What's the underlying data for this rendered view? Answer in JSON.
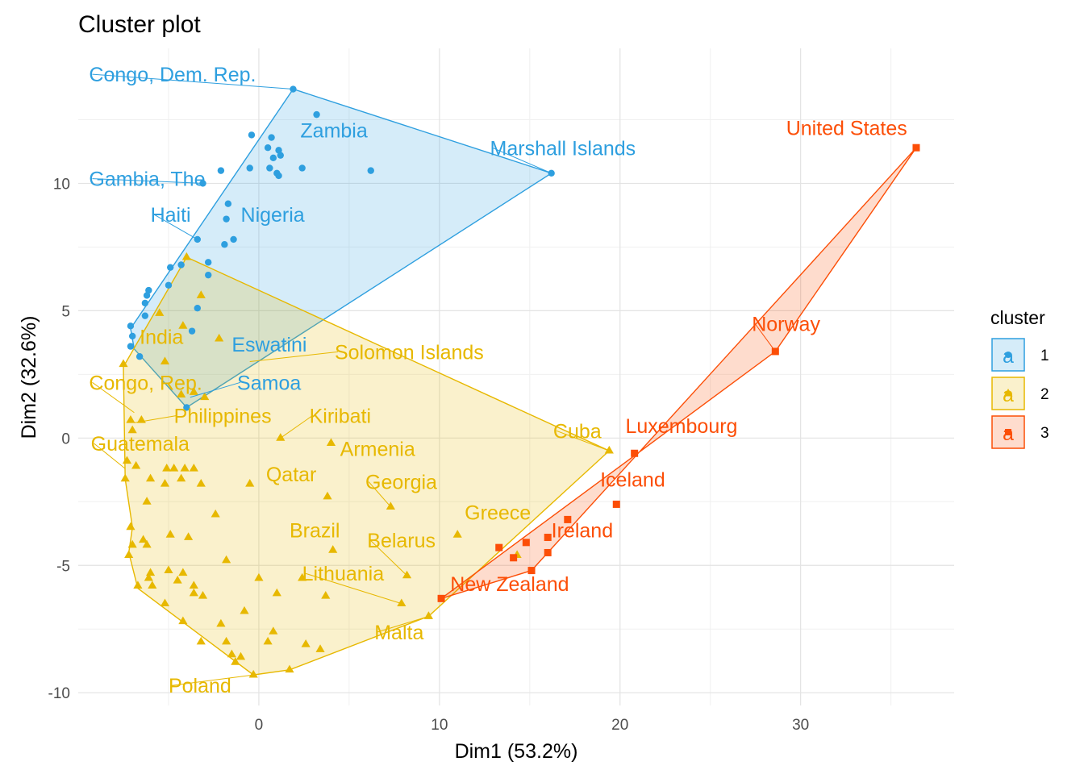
{
  "chart_data": {
    "type": "scatter",
    "title": "Cluster plot",
    "xlabel": "Dim1 (53.2%)",
    "ylabel": "Dim2 (32.6%)",
    "xlim": [
      -10,
      38.5
    ],
    "ylim": [
      -10.5,
      15.3
    ],
    "x_ticks": [
      0,
      10,
      20,
      30
    ],
    "y_ticks": [
      -10,
      -5,
      0,
      5,
      10
    ],
    "grid": true,
    "legend_title": "cluster",
    "legend_position": "right",
    "legend_glyph": "a",
    "series": [
      {
        "name": "1",
        "color": "#2E9FDF",
        "marker": "circle",
        "hull": [
          [
            -4.0,
            1.2
          ],
          [
            -6.9,
            3.5
          ],
          [
            -7.1,
            4.3
          ],
          [
            1.9,
            13.7
          ],
          [
            16.2,
            10.4
          ]
        ],
        "points": [
          [
            1.9,
            13.7
          ],
          [
            3.2,
            12.7
          ],
          [
            -0.4,
            11.9
          ],
          [
            0.7,
            11.8
          ],
          [
            0.5,
            11.4
          ],
          [
            1.1,
            11.3
          ],
          [
            1.2,
            11.1
          ],
          [
            0.8,
            11.0
          ],
          [
            -2.1,
            10.5
          ],
          [
            -0.5,
            10.6
          ],
          [
            0.6,
            10.6
          ],
          [
            2.4,
            10.6
          ],
          [
            6.2,
            10.5
          ],
          [
            1.0,
            10.4
          ],
          [
            1.1,
            10.3
          ],
          [
            16.2,
            10.4
          ],
          [
            -3.1,
            10.0
          ],
          [
            -1.7,
            9.2
          ],
          [
            -1.8,
            8.6
          ],
          [
            -3.4,
            7.8
          ],
          [
            -1.4,
            7.8
          ],
          [
            -1.9,
            7.6
          ],
          [
            -2.8,
            6.9
          ],
          [
            -4.3,
            6.8
          ],
          [
            -4.9,
            6.7
          ],
          [
            -2.8,
            6.4
          ],
          [
            -5.0,
            6.0
          ],
          [
            -6.1,
            5.8
          ],
          [
            -6.2,
            5.6
          ],
          [
            -6.3,
            5.3
          ],
          [
            -3.4,
            5.1
          ],
          [
            -6.3,
            4.8
          ],
          [
            -7.1,
            4.4
          ],
          [
            -3.7,
            4.2
          ],
          [
            -7.0,
            4.0
          ],
          [
            -7.1,
            3.6
          ],
          [
            -6.6,
            3.2
          ],
          [
            -4.0,
            1.2
          ]
        ]
      },
      {
        "name": "2",
        "color": "#E7B800",
        "marker": "triangle",
        "hull": [
          [
            -7.4,
            -1.6
          ],
          [
            -7.5,
            2.8
          ],
          [
            -4.0,
            7.1
          ],
          [
            19.4,
            -0.5
          ],
          [
            9.4,
            -7.0
          ],
          [
            1.7,
            -9.1
          ],
          [
            -0.3,
            -9.3
          ],
          [
            -6.7,
            -5.9
          ],
          [
            -7.2,
            -4.5
          ],
          [
            -7.0,
            -3.5
          ]
        ],
        "points": [
          [
            -4.0,
            7.1
          ],
          [
            -3.2,
            5.6
          ],
          [
            -5.5,
            4.9
          ],
          [
            -4.2,
            4.4
          ],
          [
            -2.2,
            3.9
          ],
          [
            -5.2,
            3.0
          ],
          [
            -7.5,
            2.9
          ],
          [
            -4.3,
            1.7
          ],
          [
            -3.6,
            1.8
          ],
          [
            -3.0,
            1.6
          ],
          [
            -7.1,
            0.7
          ],
          [
            -6.5,
            0.7
          ],
          [
            -7.0,
            0.3
          ],
          [
            1.2,
            0.0
          ],
          [
            4.0,
            -0.2
          ],
          [
            19.4,
            -0.5
          ],
          [
            -7.3,
            -0.9
          ],
          [
            -6.8,
            -1.1
          ],
          [
            -5.1,
            -1.2
          ],
          [
            -4.7,
            -1.2
          ],
          [
            -4.1,
            -1.2
          ],
          [
            -3.6,
            -1.2
          ],
          [
            -7.4,
            -1.6
          ],
          [
            -6.0,
            -1.6
          ],
          [
            -4.3,
            -1.6
          ],
          [
            -5.2,
            -1.8
          ],
          [
            -3.2,
            -1.8
          ],
          [
            -0.5,
            -1.8
          ],
          [
            3.8,
            -2.3
          ],
          [
            -6.2,
            -2.5
          ],
          [
            -2.4,
            -3.0
          ],
          [
            7.3,
            -2.7
          ],
          [
            -7.1,
            -3.5
          ],
          [
            -6.4,
            -4.0
          ],
          [
            -4.9,
            -3.8
          ],
          [
            -3.9,
            -3.9
          ],
          [
            11.0,
            -3.8
          ],
          [
            -7.0,
            -4.2
          ],
          [
            4.1,
            -4.4
          ],
          [
            -6.2,
            -4.2
          ],
          [
            -7.2,
            -4.6
          ],
          [
            -1.8,
            -4.8
          ],
          [
            2.4,
            -5.5
          ],
          [
            -6.0,
            -5.3
          ],
          [
            -5.0,
            -5.2
          ],
          [
            -4.2,
            -5.3
          ],
          [
            -4.5,
            -5.6
          ],
          [
            0.0,
            -5.5
          ],
          [
            -6.1,
            -5.5
          ],
          [
            -5.9,
            -5.8
          ],
          [
            -6.7,
            -5.8
          ],
          [
            -3.6,
            -5.8
          ],
          [
            -3.6,
            -6.1
          ],
          [
            1.0,
            -6.1
          ],
          [
            3.7,
            -6.2
          ],
          [
            -3.1,
            -6.2
          ],
          [
            -5.2,
            -6.5
          ],
          [
            7.9,
            -6.5
          ],
          [
            8.2,
            -5.4
          ],
          [
            -0.8,
            -6.8
          ],
          [
            9.4,
            -7.0
          ],
          [
            -4.2,
            -7.2
          ],
          [
            -2.1,
            -7.3
          ],
          [
            0.8,
            -7.6
          ],
          [
            14.3,
            -4.6
          ],
          [
            -3.2,
            -8.0
          ],
          [
            -1.8,
            -8.0
          ],
          [
            0.5,
            -8.0
          ],
          [
            2.6,
            -8.1
          ],
          [
            3.4,
            -8.3
          ],
          [
            -0.3,
            -9.3
          ],
          [
            1.7,
            -9.1
          ],
          [
            -1.3,
            -8.8
          ],
          [
            -1.0,
            -8.6
          ],
          [
            -1.5,
            -8.5
          ]
        ]
      },
      {
        "name": "3",
        "color": "#FC4E07",
        "marker": "square",
        "hull": [
          [
            36.4,
            11.4
          ],
          [
            28.6,
            3.4
          ],
          [
            10.1,
            -6.3
          ],
          [
            15.1,
            -5.2
          ]
        ],
        "points": [
          [
            36.4,
            11.4
          ],
          [
            28.6,
            3.4
          ],
          [
            20.8,
            -0.6
          ],
          [
            19.8,
            -2.6
          ],
          [
            17.1,
            -3.2
          ],
          [
            13.3,
            -4.3
          ],
          [
            14.8,
            -4.1
          ],
          [
            16.0,
            -3.9
          ],
          [
            14.1,
            -4.7
          ],
          [
            16.0,
            -4.5
          ],
          [
            15.1,
            -5.2
          ],
          [
            10.1,
            -6.3
          ]
        ]
      }
    ],
    "annotations": [
      {
        "text": "Congo, Dem. Rep.",
        "cluster": "1",
        "x": 1.9,
        "y": 13.7,
        "lx": -9.4,
        "ly": 14.0,
        "anchor": "start"
      },
      {
        "text": "Zambia",
        "cluster": "1",
        "x": 3.2,
        "y": 12.7,
        "lx": 2.3,
        "ly": 11.8,
        "anchor": "start"
      },
      {
        "text": "Marshall Islands",
        "cluster": "1",
        "x": 16.2,
        "y": 10.4,
        "lx": 12.8,
        "ly": 11.1,
        "anchor": "start"
      },
      {
        "text": "Gambia, The",
        "cluster": "1",
        "x": -3.1,
        "y": 10.0,
        "lx": -9.4,
        "ly": 9.9,
        "anchor": "start"
      },
      {
        "text": "Haiti",
        "cluster": "1",
        "x": -3.4,
        "y": 7.8,
        "lx": -6.0,
        "ly": 8.5,
        "anchor": "start"
      },
      {
        "text": "Nigeria",
        "cluster": "1",
        "x": -1.4,
        "y": 7.8,
        "lx": -1.0,
        "ly": 8.5,
        "anchor": "start"
      },
      {
        "text": "Eswatini",
        "cluster": "1",
        "x": -1.9,
        "y": 2.6,
        "lx": -1.5,
        "ly": 3.4,
        "anchor": "start"
      },
      {
        "text": "Samoa",
        "cluster": "1",
        "x": -3.8,
        "y": 1.6,
        "lx": -1.2,
        "ly": 1.9,
        "anchor": "start"
      },
      {
        "text": "United States",
        "cluster": "3",
        "x": 36.4,
        "y": 11.4,
        "lx": 35.9,
        "ly": 11.9,
        "anchor": "end"
      },
      {
        "text": "Norway",
        "cluster": "3",
        "x": 28.6,
        "y": 3.4,
        "lx": 27.3,
        "ly": 4.2,
        "anchor": "start"
      },
      {
        "text": "Luxembourg",
        "cluster": "3",
        "x": 20.8,
        "y": -0.6,
        "lx": 20.3,
        "ly": 0.2,
        "anchor": "start"
      },
      {
        "text": "Iceland",
        "cluster": "3",
        "x": 19.8,
        "y": -2.6,
        "lx": 18.9,
        "ly": -1.9,
        "anchor": "start"
      },
      {
        "text": "Ireland",
        "cluster": "3",
        "x": 16.0,
        "y": -3.9,
        "lx": 16.2,
        "ly": -3.9,
        "anchor": "start"
      },
      {
        "text": "New Zealand",
        "cluster": "3",
        "x": 10.1,
        "y": -6.3,
        "lx": 10.6,
        "ly": -6.0,
        "anchor": "start"
      },
      {
        "text": "India",
        "cluster": "2",
        "x": -6.6,
        "y": 3.2,
        "lx": -6.6,
        "ly": 3.7,
        "anchor": "start"
      },
      {
        "text": "Solomon Islands",
        "cluster": "2",
        "x": -0.5,
        "y": 3.0,
        "lx": 4.2,
        "ly": 3.1,
        "anchor": "start"
      },
      {
        "text": "Congo, Rep.",
        "cluster": "2",
        "x": -6.9,
        "y": 1.0,
        "lx": -9.4,
        "ly": 1.9,
        "anchor": "start"
      },
      {
        "text": "Philippines",
        "cluster": "2",
        "x": -6.9,
        "y": 0.6,
        "lx": -4.7,
        "ly": 0.6,
        "anchor": "start"
      },
      {
        "text": "Kiribati",
        "cluster": "2",
        "x": 1.2,
        "y": 0.0,
        "lx": 2.8,
        "ly": 0.6,
        "anchor": "start"
      },
      {
        "text": "Cuba",
        "cluster": "2",
        "x": 19.4,
        "y": -0.5,
        "lx": 16.3,
        "ly": 0.0,
        "anchor": "start"
      },
      {
        "text": "Guatemala",
        "cluster": "2",
        "x": -7.4,
        "y": -1.2,
        "lx": -9.3,
        "ly": -0.5,
        "anchor": "start"
      },
      {
        "text": "Armenia",
        "cluster": "2",
        "x": 4.0,
        "y": -0.2,
        "lx": 4.5,
        "ly": -0.7,
        "anchor": "start"
      },
      {
        "text": "Qatar",
        "cluster": "2",
        "x": 1.0,
        "y": -1.6,
        "lx": 0.4,
        "ly": -1.7,
        "anchor": "start"
      },
      {
        "text": "Georgia",
        "cluster": "2",
        "x": 7.3,
        "y": -2.7,
        "lx": 5.9,
        "ly": -2.0,
        "anchor": "start"
      },
      {
        "text": "Greece",
        "cluster": "2",
        "x": 11.0,
        "y": -3.8,
        "lx": 11.4,
        "ly": -3.2,
        "anchor": "start"
      },
      {
        "text": "Brazil",
        "cluster": "2",
        "x": 2.4,
        "y": -4.4,
        "lx": 1.7,
        "ly": -3.9,
        "anchor": "start"
      },
      {
        "text": "Belarus",
        "cluster": "2",
        "x": 8.2,
        "y": -5.4,
        "lx": 6.0,
        "ly": -4.3,
        "anchor": "start"
      },
      {
        "text": "Lithuania",
        "cluster": "2",
        "x": 7.9,
        "y": -6.5,
        "lx": 2.4,
        "ly": -5.6,
        "anchor": "start"
      },
      {
        "text": "Malta",
        "cluster": "2",
        "x": 9.4,
        "y": -7.0,
        "lx": 6.4,
        "ly": -7.9,
        "anchor": "start"
      },
      {
        "text": "Poland",
        "cluster": "2",
        "x": -0.3,
        "y": -9.3,
        "lx": -5.0,
        "ly": -10.0,
        "anchor": "start"
      }
    ]
  }
}
